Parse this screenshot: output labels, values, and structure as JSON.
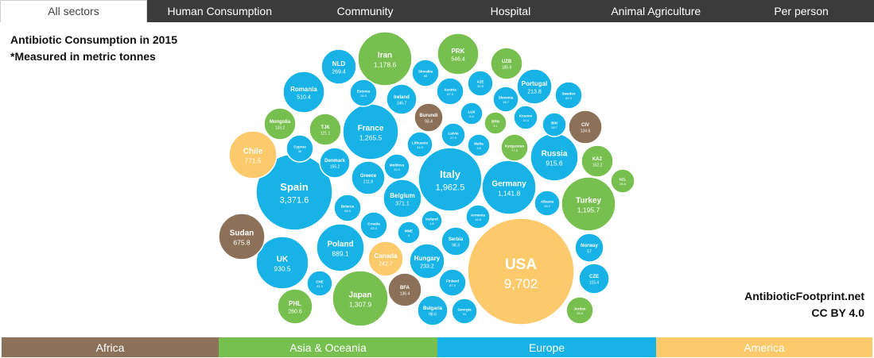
{
  "tabs": [
    {
      "label": "All sectors",
      "active": true
    },
    {
      "label": "Human Consumption",
      "active": false
    },
    {
      "label": "Community",
      "active": false
    },
    {
      "label": "Hospital",
      "active": false
    },
    {
      "label": "Animal Agriculture",
      "active": false
    },
    {
      "label": "Per person",
      "active": false
    }
  ],
  "title": {
    "line1": "Antibiotic Consumption in 2015",
    "line2": "*Measured in metric tonnes"
  },
  "credit": {
    "site": "AntibioticFootprint.net",
    "license": "CC BY 4.0"
  },
  "colors": {
    "Africa": "#8c7158",
    "Asia & Oceania": "#77bf4e",
    "Europe": "#17b2e6",
    "America": "#fcc96b"
  },
  "legend": [
    {
      "label": "Africa",
      "color": "#8c7158"
    },
    {
      "label": "Asia & Oceania",
      "color": "#77bf4e"
    },
    {
      "label": "Europe",
      "color": "#17b2e6"
    },
    {
      "label": "America",
      "color": "#fcc96b"
    }
  ],
  "chart_data": {
    "type": "bubble",
    "size_unit": "metric tonnes",
    "bubbles": [
      {
        "name": "USA",
        "value": 9702,
        "label": "9,702",
        "region": "America"
      },
      {
        "name": "Spain",
        "value": 3371.6,
        "label": "3,371.6",
        "region": "Europe"
      },
      {
        "name": "Italy",
        "value": 1962.5,
        "label": "1,962.5",
        "region": "Europe"
      },
      {
        "name": "Japan",
        "value": 1307.9,
        "label": "1,307.9",
        "region": "Asia & Oceania"
      },
      {
        "name": "France",
        "value": 1265.5,
        "label": "1,265.5",
        "region": "Europe"
      },
      {
        "name": "Turkey",
        "value": 1195.7,
        "label": "1,195.7",
        "region": "Asia & Oceania"
      },
      {
        "name": "Iran",
        "value": 1178.6,
        "label": "1,178.6",
        "region": "Asia & Oceania"
      },
      {
        "name": "Germany",
        "value": 1141.8,
        "label": "1,141.8",
        "region": "Europe"
      },
      {
        "name": "UK",
        "value": 930.5,
        "label": "930.5",
        "region": "Europe"
      },
      {
        "name": "Russia",
        "value": 915.6,
        "label": "915.6",
        "region": "Europe"
      },
      {
        "name": "Poland",
        "value": 889.1,
        "label": "889.1",
        "region": "Europe"
      },
      {
        "name": "Chile",
        "value": 771.5,
        "label": "771.5",
        "region": "America"
      },
      {
        "name": "Sudan",
        "value": 675.8,
        "label": "675.8",
        "region": "Africa"
      },
      {
        "name": "PRK",
        "value": 546.4,
        "label": "546.4",
        "region": "Asia & Oceania"
      },
      {
        "name": "Romania",
        "value": 510.4,
        "label": "510.4",
        "region": "Europe"
      },
      {
        "name": "Belgium",
        "value": 371.1,
        "label": "371.1",
        "region": "Europe"
      },
      {
        "name": "NLD",
        "value": 269.4,
        "label": "269.4",
        "region": "Europe"
      },
      {
        "name": "PHL",
        "value": 260.6,
        "label": "260.6",
        "region": "Asia & Oceania"
      },
      {
        "name": "Canada",
        "value": 242.7,
        "label": "242.7",
        "region": "America"
      },
      {
        "name": "Hungary",
        "value": 233.2,
        "label": "233.2",
        "region": "Europe"
      },
      {
        "name": "Portugal",
        "value": 213.8,
        "label": "213.8",
        "region": "Europe"
      },
      {
        "name": "Greece",
        "value": 211.9,
        "label": "211.9",
        "region": "Europe"
      },
      {
        "name": "UZB",
        "value": 185.9,
        "label": "185.9",
        "region": "Asia & Oceania"
      },
      {
        "name": "KAZ",
        "value": 162.2,
        "label": "162.2",
        "region": "Asia & Oceania"
      },
      {
        "name": "Denmark",
        "value": 155.2,
        "label": "155.2",
        "region": "Europe"
      },
      {
        "name": "Ireland",
        "value": 146.7,
        "label": "146.7",
        "region": "Europe"
      },
      {
        "name": "BFA",
        "value": 136.4,
        "label": "136.4",
        "region": "Africa"
      },
      {
        "name": "CIV",
        "value": 134.6,
        "label": "134.6",
        "region": "Africa"
      },
      {
        "name": "Mongolia",
        "value": 133.2,
        "label": "133.2",
        "region": "Asia & Oceania"
      },
      {
        "name": "TJK",
        "value": 121.1,
        "label": "121.1",
        "region": "Asia & Oceania"
      },
      {
        "name": "CZE",
        "value": 115.4,
        "label": "115.4",
        "region": "Europe"
      },
      {
        "name": "Bulgaria",
        "value": 98.6,
        "label": "98.6",
        "region": "Europe"
      },
      {
        "name": "Serbia",
        "value": 98.3,
        "label": "98.3",
        "region": "Europe"
      },
      {
        "name": "Burundi",
        "value": 93.4,
        "label": "93.4",
        "region": "Africa"
      },
      {
        "name": "Sweden",
        "value": 82.3,
        "label": "82.3",
        "region": "Europe"
      },
      {
        "name": "Kyrgyzstan",
        "value": 77.3,
        "label": "77.3",
        "region": "Asia & Oceania"
      },
      {
        "name": "Belarus",
        "value": 68.9,
        "label": "68.9",
        "region": "Europe"
      },
      {
        "name": "Austria",
        "value": 67.3,
        "label": "67.3",
        "region": "Europe"
      },
      {
        "name": "Croatia",
        "value": 63.3,
        "label": "63.3",
        "region": "Europe"
      },
      {
        "name": "Slovakia",
        "value": 65,
        "label": "65",
        "region": "Europe"
      },
      {
        "name": "Finland",
        "value": 57.9,
        "label": "57.9",
        "region": "Europe"
      },
      {
        "name": "Norway",
        "value": 57,
        "label": "57",
        "region": "Europe"
      },
      {
        "name": "Estonia",
        "value": 16.3,
        "label": "16.3",
        "region": "Europe"
      },
      {
        "name": "Cyprus",
        "value": 35,
        "label": "35",
        "region": "Europe"
      },
      {
        "name": "Lithuania",
        "value": 31.9,
        "label": "31.9",
        "region": "Europe"
      },
      {
        "name": "Moldova",
        "value": 20.3,
        "label": "20.3",
        "region": "Europe"
      },
      {
        "name": "CHE",
        "value": 41.3,
        "label": "41.3",
        "region": "Europe"
      },
      {
        "name": "Georgia",
        "value": 31,
        "label": "31",
        "region": "Europe"
      },
      {
        "name": "AZE",
        "value": 30.5,
        "label": "30.5",
        "region": "Europe"
      },
      {
        "name": "Slovenia",
        "value": 18.7,
        "label": "18.7",
        "region": "Europe"
      },
      {
        "name": "Kosovo",
        "value": 10.4,
        "label": "10.4",
        "region": "Europe"
      },
      {
        "name": "BIH",
        "value": 28.7,
        "label": "28.7",
        "region": "Europe"
      },
      {
        "name": "Latvia",
        "value": 27.9,
        "label": "27.9",
        "region": "Europe"
      },
      {
        "name": "Jordan",
        "value": 25.3,
        "label": "25.3",
        "region": "Asia & Oceania"
      },
      {
        "name": "Albania",
        "value": 28.2,
        "label": "28.2",
        "region": "Europe"
      },
      {
        "name": "NZL",
        "value": 26.8,
        "label": "26.8",
        "region": "Asia & Oceania"
      },
      {
        "name": "Armenia",
        "value": 16.5,
        "label": "16.5",
        "region": "Europe"
      },
      {
        "name": "BRN",
        "value": 3.1,
        "label": "3.1",
        "region": "Asia & Oceania"
      },
      {
        "name": "LUX",
        "value": 6.4,
        "label": "6.4",
        "region": "Europe"
      },
      {
        "name": "Malta",
        "value": 3.6,
        "label": "3.6",
        "region": "Europe"
      },
      {
        "name": "Iceland",
        "value": 1.6,
        "label": "1.6",
        "region": "Europe"
      },
      {
        "name": "MNE",
        "value": 4,
        "label": "4",
        "region": "Europe"
      }
    ]
  }
}
